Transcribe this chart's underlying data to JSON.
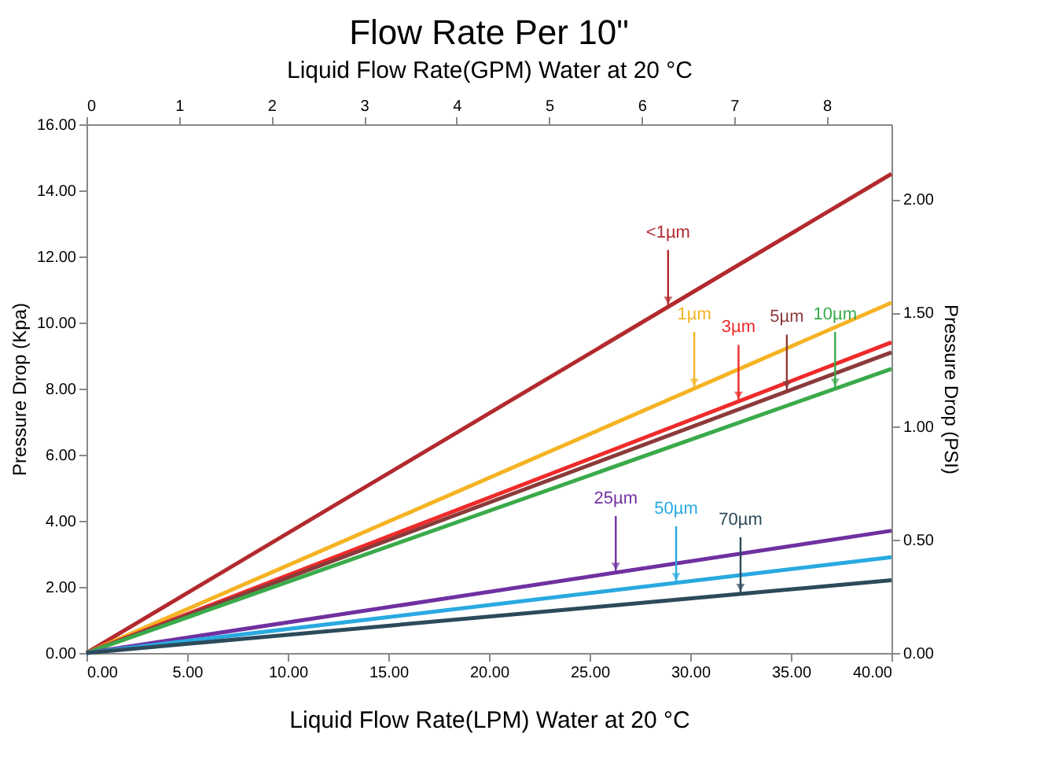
{
  "chart_data": {
    "type": "line",
    "title": "Flow Rate Per 10\"",
    "xlabel": "Liquid Flow Rate(LPM) Water at 20 °C",
    "ylabel": "Pressure Drop  (Kpa)",
    "y2label": "Pressure Drop  (PSI)",
    "x2label": "Liquid Flow Rate(GPM) Water at 20 °C",
    "xlim": [
      0,
      40
    ],
    "xticks": [
      {
        "value": 0,
        "label": "0.00"
      },
      {
        "value": 5,
        "label": "5.00"
      },
      {
        "value": 10,
        "label": "10.00"
      },
      {
        "value": 15,
        "label": "15.00"
      },
      {
        "value": 20,
        "label": "20.00"
      },
      {
        "value": 25,
        "label": "25.00"
      },
      {
        "value": 30,
        "label": "30.00"
      },
      {
        "value": 35,
        "label": "35.00"
      },
      {
        "value": 40,
        "label": "40.00"
      }
    ],
    "ylim": [
      0,
      16
    ],
    "yticks": [
      {
        "value": 0,
        "label": "0.00"
      },
      {
        "value": 2,
        "label": "2.00"
      },
      {
        "value": 4,
        "label": "4.00"
      },
      {
        "value": 6,
        "label": "6.00"
      },
      {
        "value": 8,
        "label": "8.00"
      },
      {
        "value": 10,
        "label": "10.00"
      },
      {
        "value": 12,
        "label": "12.00"
      },
      {
        "value": 14,
        "label": "14.00"
      },
      {
        "value": 16,
        "label": "16.00"
      }
    ],
    "y2lim": [
      0,
      2.33
    ],
    "y2ticks": [
      {
        "value": 0,
        "label": "0.00"
      },
      {
        "value": 0.5,
        "label": "0.50"
      },
      {
        "value": 1,
        "label": "1.00"
      },
      {
        "value": 1.5,
        "label": "1.50"
      },
      {
        "value": 2,
        "label": "2.00"
      }
    ],
    "x2lim": [
      0,
      8.7
    ],
    "x2ticks": [
      0,
      1,
      2,
      3,
      4,
      5,
      6,
      7,
      8
    ],
    "grid": false,
    "marker": "none",
    "line_style": "solid",
    "x": [
      0,
      40
    ],
    "series": [
      {
        "color": "#b22a2e",
        "values": [
          0,
          14.5
        ]
      },
      {
        "color": "#f5b324",
        "values": [
          0,
          10.6
        ]
      },
      {
        "color": "#ee2a2a",
        "values": [
          0,
          9.4
        ]
      },
      {
        "color": "#8b3a3a",
        "values": [
          0,
          9.1
        ]
      },
      {
        "color": "#3aaa4a",
        "values": [
          0,
          8.6
        ]
      },
      {
        "color": "#7030a0",
        "values": [
          0,
          3.7
        ]
      },
      {
        "color": "#29a9e0",
        "values": [
          0,
          2.9
        ]
      },
      {
        "color": "#2c4a5a",
        "values": [
          0,
          2.2
        ]
      }
    ],
    "annotations": [
      {
        "text": "<1µm",
        "x": 28.9,
        "y": 10.48
      },
      {
        "text": "1µm",
        "x": 30.2,
        "y": 8.0
      },
      {
        "text": "3µm",
        "x": 32.4,
        "y": 7.61
      },
      {
        "text": "5µm",
        "x": 34.8,
        "y": 7.92
      },
      {
        "text": "10µm",
        "x": 37.2,
        "y": 8.0
      },
      {
        "text": "25µm",
        "x": 26.3,
        "y": 2.43
      },
      {
        "text": "50µm",
        "x": 29.3,
        "y": 2.12
      },
      {
        "text": "70µm",
        "x": 32.5,
        "y": 1.79
      }
    ]
  }
}
